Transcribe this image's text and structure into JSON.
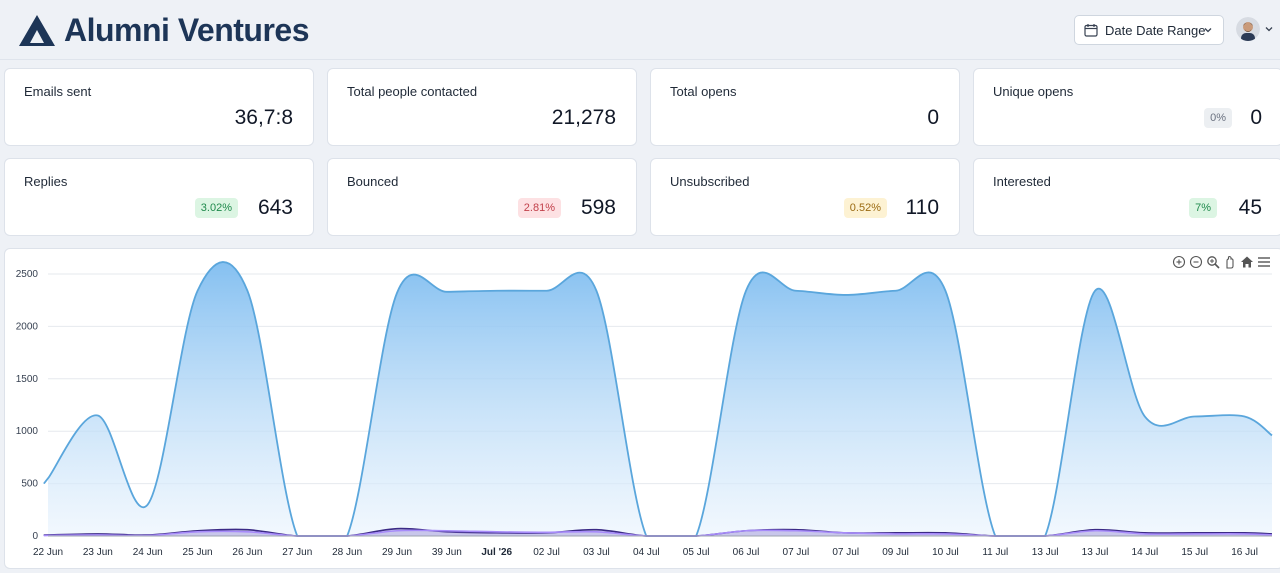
{
  "brand": {
    "name": "Alumni Ventures",
    "color": "#1d3557"
  },
  "date_range": {
    "label": "Date Date Range"
  },
  "cards": [
    {
      "title": "Emails sent",
      "value": "36,7:8"
    },
    {
      "title": "Total people contacted",
      "value": "21,278"
    },
    {
      "title": "Total opens",
      "value": "0"
    },
    {
      "title": "Unique opens",
      "value": "0",
      "badge": "0%",
      "badge_bg": "#eceff2",
      "badge_fg": "#6b7280"
    },
    {
      "title": "Replies",
      "value": "643",
      "badge": "3.02%",
      "badge_bg": "#dcf5e3",
      "badge_fg": "#1f8a4c"
    },
    {
      "title": "Bounced",
      "value": "598",
      "badge": "2.81%",
      "badge_bg": "#fde1e3",
      "badge_fg": "#c2414b"
    },
    {
      "title": "Unsubscribed",
      "value": "110",
      "badge": "0.52%",
      "badge_bg": "#fdf2d3",
      "badge_fg": "#9a6a12"
    },
    {
      "title": "Interested",
      "value": "45",
      "badge": "7%",
      "badge_bg": "#dcf5e3",
      "badge_fg": "#1f8a4c"
    }
  ],
  "toolbar": [
    "zoom-in-icon",
    "zoom-out-icon",
    "magnify-icon",
    "pan-icon",
    "home-icon",
    "menu-icon"
  ],
  "chart_data": {
    "type": "area",
    "ylim": [
      0,
      2500
    ],
    "yticks": [
      0,
      500,
      1000,
      1500,
      2000,
      2500
    ],
    "categories": [
      "22 Jun",
      "23 Jun",
      "24 Jun",
      "25 Jun",
      "26 Jun",
      "27 Jun",
      "28 Jun",
      "29 Jun",
      "39 Jun",
      "Jul '26",
      "02 Jul",
      "03 Jul",
      "04 Jul",
      "05 Jul",
      "06 Jul",
      "07 Jul",
      "07 Jul",
      "09 Jul",
      "10 Jul",
      "11 Jul",
      "13 Jul",
      "13 Jul",
      "14 Jul",
      "15 Jul",
      "16 Jul"
    ],
    "bold_category": "Jul '26",
    "series": [
      {
        "color": "#5aa6dc",
        "values": [
          550,
          1150,
          300,
          2340,
          2340,
          0,
          0,
          2320,
          2330,
          2340,
          2340,
          2340,
          0,
          0,
          2340,
          2340,
          2300,
          2340,
          2340,
          0,
          0,
          2340,
          1140,
          1140,
          1140
        ],
        "end_value": 960
      },
      {
        "color": "#3b2a86",
        "values": [
          10,
          20,
          10,
          50,
          60,
          0,
          0,
          70,
          40,
          30,
          30,
          60,
          0,
          0,
          50,
          60,
          30,
          30,
          30,
          0,
          0,
          60,
          30,
          30,
          30
        ],
        "end_value": 20
      },
      {
        "color": "#a78bfa",
        "values": [
          5,
          10,
          5,
          40,
          40,
          0,
          0,
          50,
          50,
          40,
          35,
          40,
          0,
          0,
          50,
          50,
          30,
          20,
          20,
          0,
          0,
          50,
          20,
          20,
          20
        ],
        "end_value": 10
      }
    ]
  }
}
